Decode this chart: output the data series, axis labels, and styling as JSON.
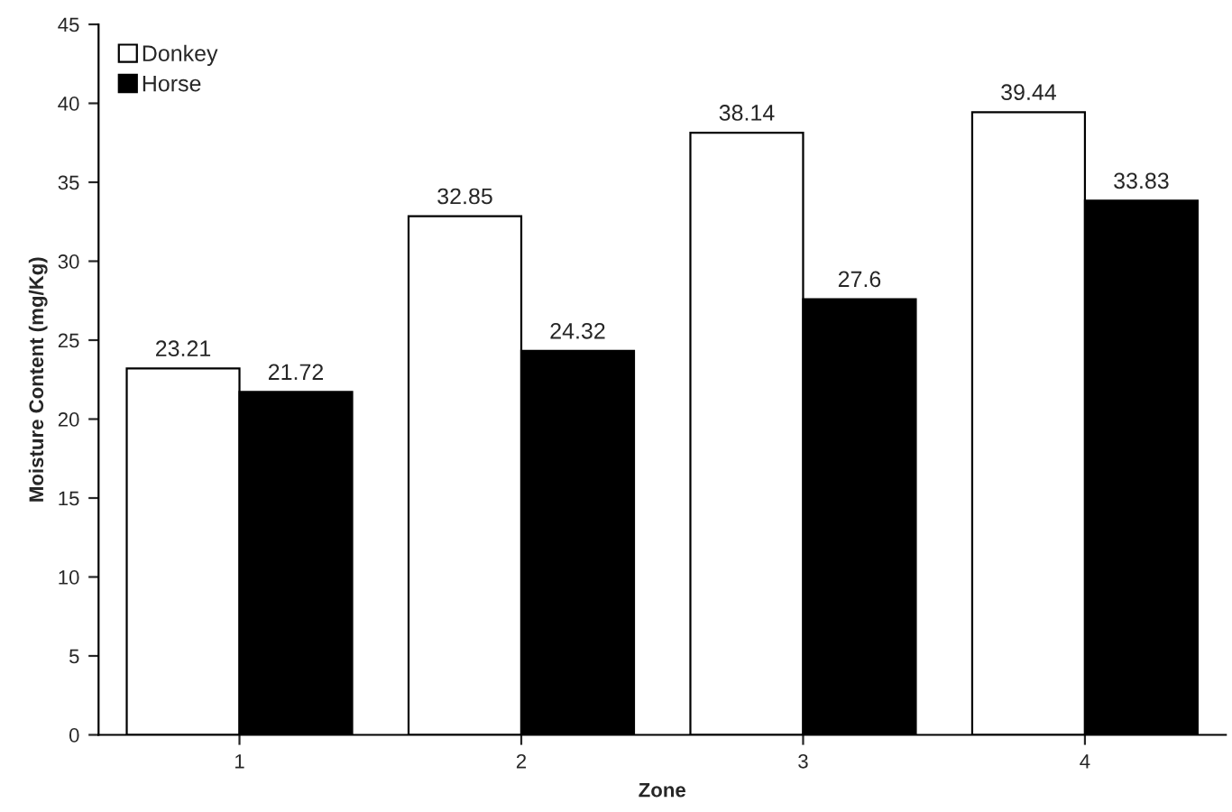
{
  "chart_data": {
    "type": "bar",
    "xlabel": "Zone",
    "ylabel": "Moisture Content (mg/Kg)",
    "categories": [
      "1",
      "2",
      "3",
      "4"
    ],
    "series": [
      {
        "name": "Donkey",
        "color": "#ffffff",
        "values": [
          23.21,
          32.85,
          38.14,
          39.44
        ]
      },
      {
        "name": "Horse",
        "color": "#000000",
        "values": [
          21.72,
          24.32,
          27.6,
          33.83
        ]
      }
    ],
    "ylim": [
      0,
      45
    ],
    "yticks": [
      0,
      5,
      10,
      15,
      20,
      25,
      30,
      35,
      40,
      45
    ],
    "data_labels": true,
    "legend": "top left",
    "grid": false
  }
}
